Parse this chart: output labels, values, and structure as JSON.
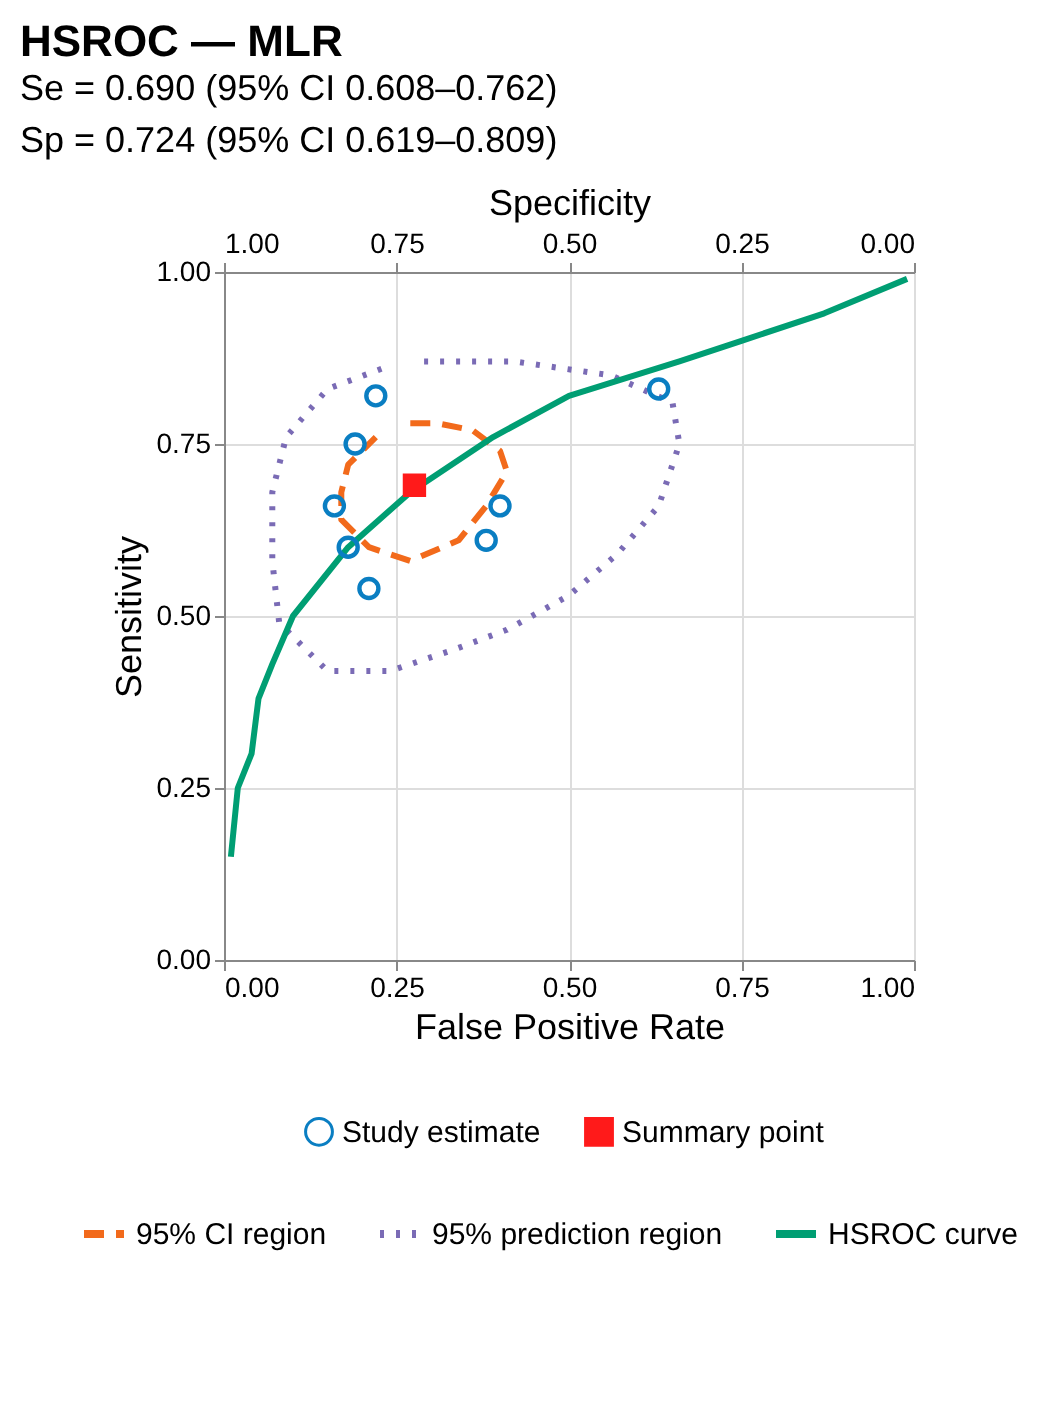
{
  "chart_data": {
    "type": "scatter",
    "title": "HSROC — MLR",
    "subtitle": [
      "Se = 0.690 (95% CI 0.608–0.762)",
      "Sp = 0.724 (95% CI 0.619–0.809)"
    ],
    "xlabel": "False Positive Rate",
    "ylabel": "Sensitivity",
    "x2label": "Specificity",
    "xlim": [
      0,
      1
    ],
    "ylim": [
      0,
      1
    ],
    "x2lim": [
      1,
      0
    ],
    "xticks": [
      {
        "value": 0,
        "label": "0.00"
      },
      0.25,
      {
        "value": 0.5,
        "label": "0.50"
      },
      0.75,
      {
        "value": 1,
        "label": "1.00"
      }
    ],
    "yticks": [
      {
        "value": 0,
        "label": "0.00"
      },
      0.25,
      {
        "value": 0.5,
        "label": "0.50"
      },
      0.75,
      {
        "value": 1,
        "label": "1.00"
      }
    ],
    "x2ticks": [
      {
        "value": 1,
        "label": "1.00"
      },
      0.75,
      {
        "value": 0.5,
        "label": "0.50"
      },
      0.25,
      {
        "value": 0,
        "label": "0.00"
      }
    ],
    "grid": true,
    "legend": "bottom",
    "series": [
      {
        "name": "95% CI region",
        "type": "line",
        "line_style": "dashed",
        "color": "#f26a1b",
        "x": [
          0.27,
          0.31,
          0.36,
          0.4,
          0.41,
          0.38,
          0.34,
          0.27,
          0.21,
          0.17,
          0.17,
          0.18,
          0.22
        ],
        "values": [
          0.78,
          0.78,
          0.77,
          0.74,
          0.71,
          0.66,
          0.61,
          0.58,
          0.6,
          0.64,
          0.68,
          0.72,
          0.76
        ]
      },
      {
        "name": "95% prediction region",
        "type": "line",
        "line_style": "dotted",
        "color": "#7a6bb5",
        "x": [
          0.29,
          0.42,
          0.56,
          0.65,
          0.66,
          0.63,
          0.57,
          0.5,
          0.41,
          0.33,
          0.24,
          0.15,
          0.08,
          0.07,
          0.07,
          0.09,
          0.15,
          0.23
        ],
        "values": [
          0.87,
          0.87,
          0.85,
          0.81,
          0.75,
          0.66,
          0.59,
          0.53,
          0.48,
          0.45,
          0.42,
          0.42,
          0.49,
          0.58,
          0.68,
          0.76,
          0.83,
          0.86
        ]
      },
      {
        "name": "HSROC curve",
        "type": "line",
        "line_style": "solid",
        "color": "#009e73",
        "x": [
          0.01,
          0.02,
          0.04,
          0.05,
          0.07,
          0.1,
          0.18,
          0.27,
          0.39,
          0.5,
          0.66,
          0.75,
          0.87,
          0.99
        ],
        "values": [
          0.15,
          0.25,
          0.3,
          0.38,
          0.43,
          0.5,
          0.6,
          0.68,
          0.76,
          0.82,
          0.87,
          0.9,
          0.94,
          0.99
        ]
      },
      {
        "name": "Study estimate",
        "marker": "circle",
        "color": "#0a7ec2",
        "x": [
          0.22,
          0.19,
          0.16,
          0.18,
          0.21,
          0.4,
          0.38,
          0.63
        ],
        "values": [
          0.82,
          0.75,
          0.66,
          0.6,
          0.54,
          0.66,
          0.61,
          0.83
        ]
      },
      {
        "name": "Summary point",
        "marker": "square",
        "color": "#ff1a1a",
        "x": [
          0.276
        ],
        "values": [
          0.69
        ]
      }
    ]
  }
}
